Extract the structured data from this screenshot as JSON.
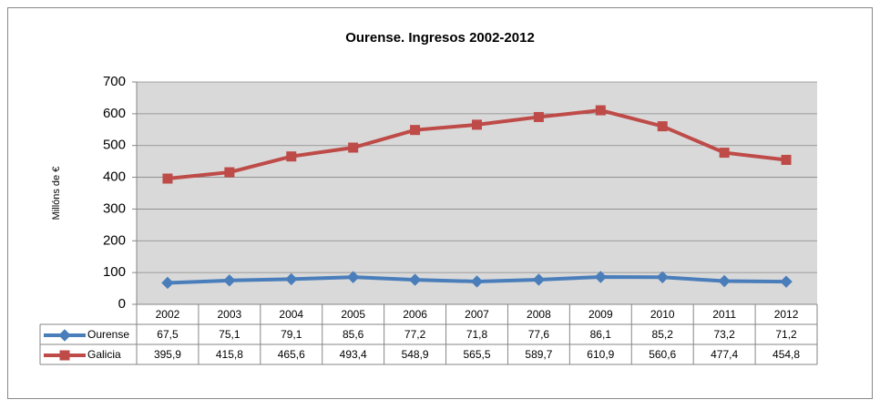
{
  "chart_data": {
    "type": "line",
    "title": "Ourense. Ingresos 2002-2012",
    "y_label": "Millóns de €",
    "categories": [
      "2002",
      "2003",
      "2004",
      "2005",
      "2006",
      "2007",
      "2008",
      "2009",
      "2010",
      "2011",
      "2012"
    ],
    "series": [
      {
        "name": "Ourense",
        "color": "#4a7ebb",
        "marker": "diamond",
        "values": [
          67.5,
          75.1,
          79.1,
          85.6,
          77.2,
          71.8,
          77.6,
          86.1,
          85.2,
          73.2,
          71.2
        ],
        "value_labels": [
          "67,5",
          "75,1",
          "79,1",
          "85,6",
          "77,2",
          "71,8",
          "77,6",
          "86,1",
          "85,2",
          "73,2",
          "71,2"
        ]
      },
      {
        "name": "Galicia",
        "color": "#be4b48",
        "marker": "square",
        "values": [
          395.9,
          415.8,
          465.6,
          493.4,
          548.9,
          565.5,
          589.7,
          610.9,
          560.6,
          477.4,
          454.8
        ],
        "value_labels": [
          "395,9",
          "415,8",
          "465,6",
          "493,4",
          "548,9",
          "565,5",
          "589,7",
          "610,9",
          "560,6",
          "477,4",
          "454,8"
        ]
      }
    ],
    "ylim": [
      0,
      700
    ],
    "yticks": [
      0,
      100,
      200,
      300,
      400,
      500,
      600,
      700
    ],
    "grid": true,
    "data_table": true
  }
}
